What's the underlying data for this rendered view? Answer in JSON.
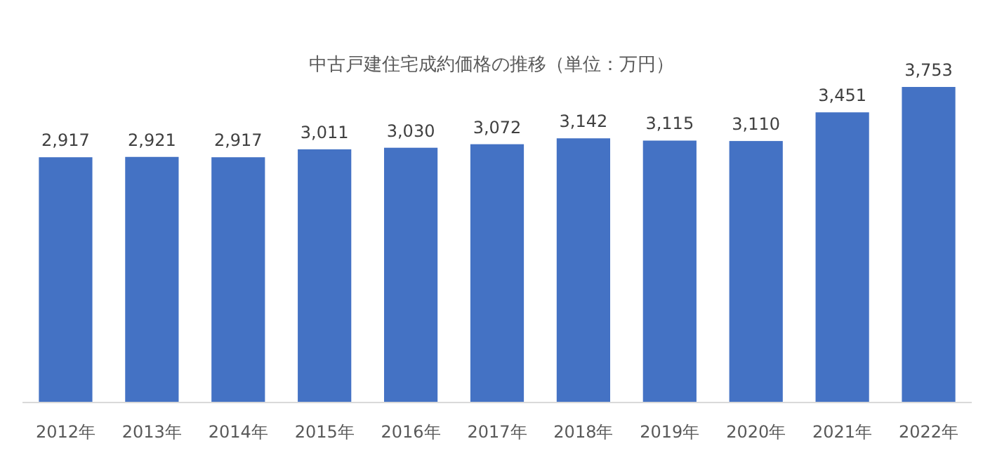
{
  "chart_data": {
    "type": "bar",
    "title": "中古戸建住宅成約価格の推移（単位：万円）",
    "categories": [
      "2012年",
      "2013年",
      "2014年",
      "2015年",
      "2016年",
      "2017年",
      "2018年",
      "2019年",
      "2020年",
      "2021年",
      "2022年"
    ],
    "values": [
      2917,
      2921,
      2917,
      3011,
      3030,
      3072,
      3142,
      3115,
      3110,
      3451,
      3753
    ],
    "value_labels": [
      "2,917",
      "2,921",
      "2,917",
      "3,011",
      "3,030",
      "3,072",
      "3,142",
      "3,115",
      "3,110",
      "3,451",
      "3,753"
    ],
    "color": "#4472c4"
  }
}
